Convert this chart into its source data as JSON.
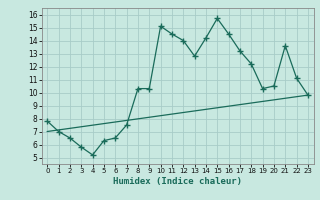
{
  "title": "",
  "xlabel": "Humidex (Indice chaleur)",
  "ylabel": "",
  "background_color": "#c8e8e0",
  "line_color": "#1a6b5a",
  "grid_color": "#a8ccc8",
  "x_values": [
    0,
    1,
    2,
    3,
    4,
    5,
    6,
    7,
    8,
    9,
    10,
    11,
    12,
    13,
    14,
    15,
    16,
    17,
    18,
    19,
    20,
    21,
    22,
    23
  ],
  "y_values": [
    7.8,
    7.0,
    6.5,
    5.8,
    5.2,
    6.3,
    6.5,
    7.5,
    10.3,
    10.3,
    15.1,
    14.5,
    14.0,
    12.8,
    14.2,
    15.7,
    14.5,
    13.2,
    12.2,
    10.3,
    10.5,
    13.6,
    11.1,
    9.8
  ],
  "trend_x": [
    0,
    23
  ],
  "trend_y": [
    7.0,
    9.8
  ],
  "xlim": [
    -0.5,
    23.5
  ],
  "ylim": [
    4.5,
    16.5
  ],
  "yticks": [
    5,
    6,
    7,
    8,
    9,
    10,
    11,
    12,
    13,
    14,
    15,
    16
  ],
  "xticks": [
    0,
    1,
    2,
    3,
    4,
    5,
    6,
    7,
    8,
    9,
    10,
    11,
    12,
    13,
    14,
    15,
    16,
    17,
    18,
    19,
    20,
    21,
    22,
    23
  ]
}
